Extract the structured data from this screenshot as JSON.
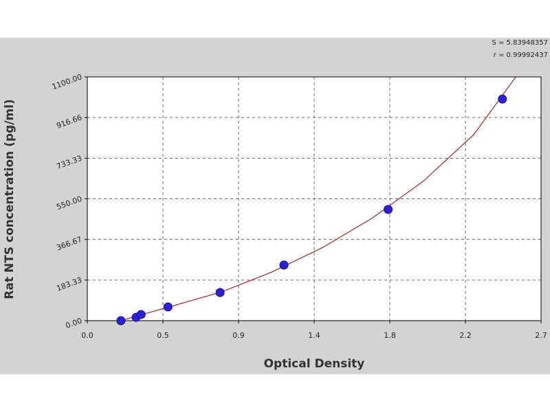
{
  "chart_data": {
    "type": "scatter",
    "annotations": [
      "S = 5.83948357",
      "r = 0.99992437"
    ],
    "x_label": "Optical Density",
    "y_label": "Rat NTS  concentration (pg/ml)",
    "x": [
      0.2,
      0.29,
      0.32,
      0.48,
      0.79,
      1.17,
      1.79,
      2.47
    ],
    "values": [
      0,
      15,
      28,
      62,
      127,
      251,
      502,
      1000
    ],
    "color": "#2b20d6",
    "fit": {
      "color": "#a33a3a",
      "x": [
        0.2,
        0.5,
        0.8,
        1.1,
        1.4,
        1.7,
        2.0,
        2.3,
        2.55
      ],
      "values": [
        0,
        65,
        130,
        220,
        330,
        465,
        630,
        840,
        1100
      ]
    },
    "xlim": [
      0,
      2.7
    ],
    "xticks": [
      {
        "value": 0,
        "label": "0.0"
      },
      {
        "value": 0.45,
        "label": "0.5"
      },
      0.9,
      {
        "value": 1.35,
        "label": "1.4"
      },
      1.8,
      {
        "value": 2.25,
        "label": "2.2"
      },
      2.7
    ],
    "ylim": [
      0,
      1100
    ],
    "yticks": [
      {
        "value": 0,
        "label": "0.00"
      },
      183.33,
      366.67,
      {
        "value": 550,
        "label": "550.00"
      },
      733.33,
      916.66,
      {
        "value": 1100,
        "label": "1100.00"
      }
    ],
    "grid": true
  }
}
